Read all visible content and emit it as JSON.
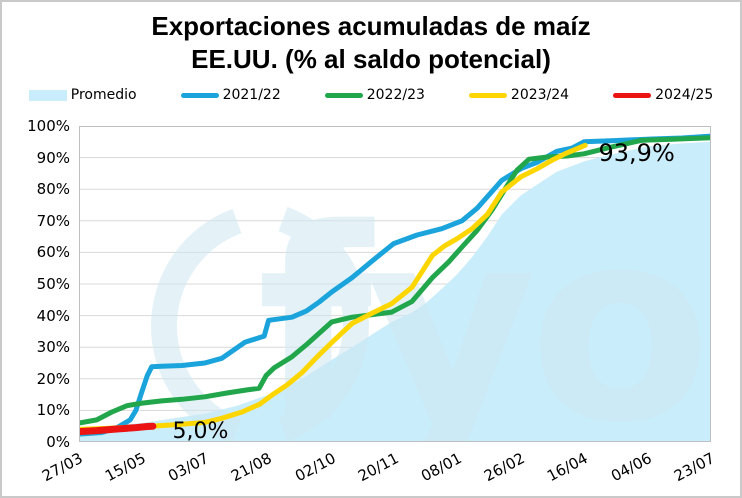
{
  "title": {
    "line1": "Exportaciones acumuladas de maíz",
    "line2": "EE.UU. (% al saldo potencial)"
  },
  "legend": {
    "items": [
      {
        "label": "Promedio",
        "color": "#c9edfa",
        "type": "area"
      },
      {
        "label": "2021/22",
        "color": "#1ba4dc",
        "type": "line"
      },
      {
        "label": "2022/23",
        "color": "#21a64b",
        "type": "line"
      },
      {
        "label": "2023/24",
        "color": "#fdd600",
        "type": "line"
      },
      {
        "label": "2024/25",
        "color": "#ec1313",
        "type": "line"
      }
    ]
  },
  "axes": {
    "y_ticks": [
      "0%",
      "10%",
      "20%",
      "30%",
      "40%",
      "50%",
      "60%",
      "70%",
      "80%",
      "90%",
      "100%"
    ],
    "x_ticks": [
      "27/03",
      "15/05",
      "03/07",
      "21/08",
      "02/10",
      "20/11",
      "08/01",
      "26/02",
      "16/04",
      "04/06",
      "23/07"
    ]
  },
  "annotations": [
    {
      "text": "5,0%",
      "x": 0.148,
      "value": 1.2,
      "size": 22
    },
    {
      "text": "93,9%",
      "x": 0.822,
      "value": 89.0,
      "size": 24
    }
  ],
  "watermark": {
    "text": "fyo",
    "color": "#cfe8f3"
  },
  "chart_data": {
    "type": "line",
    "title": "Exportaciones acumuladas de maíz EE.UU. (% al saldo potencial)",
    "x_axis": {
      "ticks": [
        "27/03",
        "15/05",
        "03/07",
        "21/08",
        "02/10",
        "20/11",
        "08/01",
        "26/02",
        "16/04",
        "04/06",
        "23/07"
      ]
    },
    "y_axis": {
      "min": 0,
      "max": 100,
      "unit": "%",
      "grid": true,
      "grid_color": "#d9d9d9",
      "border_color": "#bfbfbf"
    },
    "legend_position": "top",
    "series": [
      {
        "name": "Promedio",
        "kind": "area",
        "color": "#c9edfa",
        "points": [
          [
            0,
            4.5
          ],
          [
            0.05,
            5.2
          ],
          [
            0.1,
            6
          ],
          [
            0.15,
            7.5
          ],
          [
            0.2,
            9
          ],
          [
            0.25,
            11.5
          ],
          [
            0.3,
            15
          ],
          [
            0.353,
            20
          ],
          [
            0.4,
            26
          ],
          [
            0.448,
            32
          ],
          [
            0.495,
            38
          ],
          [
            0.527,
            41
          ],
          [
            0.549,
            44
          ],
          [
            0.574,
            48.5
          ],
          [
            0.598,
            53
          ],
          [
            0.622,
            58.5
          ],
          [
            0.646,
            65
          ],
          [
            0.669,
            72
          ],
          [
            0.699,
            78
          ],
          [
            0.725,
            81.5
          ],
          [
            0.756,
            85.5
          ],
          [
            0.799,
            88.8
          ],
          [
            0.843,
            91
          ],
          [
            0.899,
            93.5
          ],
          [
            0.954,
            94.5
          ],
          [
            1,
            95
          ]
        ]
      },
      {
        "name": "2021/22",
        "kind": "line",
        "color": "#1ba4dc",
        "width": 5,
        "points": [
          [
            0,
            2.5
          ],
          [
            0.036,
            3
          ],
          [
            0.06,
            4.5
          ],
          [
            0.081,
            7
          ],
          [
            0.09,
            10
          ],
          [
            0.098,
            15
          ],
          [
            0.108,
            21
          ],
          [
            0.115,
            23.8
          ],
          [
            0.131,
            24
          ],
          [
            0.163,
            24.2
          ],
          [
            0.199,
            25
          ],
          [
            0.226,
            26.5
          ],
          [
            0.263,
            31.6
          ],
          [
            0.293,
            33.5
          ],
          [
            0.3,
            38.5
          ],
          [
            0.337,
            39.5
          ],
          [
            0.36,
            41.5
          ],
          [
            0.38,
            44.3
          ],
          [
            0.4,
            47.5
          ],
          [
            0.432,
            52
          ],
          [
            0.464,
            57.3
          ],
          [
            0.498,
            62.8
          ],
          [
            0.535,
            65.5
          ],
          [
            0.574,
            67.5
          ],
          [
            0.606,
            70
          ],
          [
            0.63,
            74
          ],
          [
            0.669,
            82.8
          ],
          [
            0.699,
            86.5
          ],
          [
            0.725,
            88.5
          ],
          [
            0.756,
            92
          ],
          [
            0.78,
            93
          ],
          [
            0.799,
            95
          ],
          [
            0.851,
            95.4
          ],
          [
            0.907,
            95.9
          ],
          [
            0.954,
            96.2
          ],
          [
            1,
            96.8
          ]
        ]
      },
      {
        "name": "2022/23",
        "kind": "line",
        "color": "#21a64b",
        "width": 5,
        "points": [
          [
            0,
            6
          ],
          [
            0.028,
            7
          ],
          [
            0.052,
            9.5
          ],
          [
            0.076,
            11.5
          ],
          [
            0.1,
            12.3
          ],
          [
            0.131,
            13
          ],
          [
            0.163,
            13.5
          ],
          [
            0.199,
            14.3
          ],
          [
            0.234,
            15.5
          ],
          [
            0.266,
            16.5
          ],
          [
            0.285,
            17
          ],
          [
            0.296,
            21
          ],
          [
            0.309,
            23.5
          ],
          [
            0.337,
            27
          ],
          [
            0.361,
            31
          ],
          [
            0.4,
            38
          ],
          [
            0.432,
            39.5
          ],
          [
            0.464,
            40.3
          ],
          [
            0.495,
            41.1
          ],
          [
            0.527,
            44.5
          ],
          [
            0.559,
            52
          ],
          [
            0.585,
            57
          ],
          [
            0.606,
            61.7
          ],
          [
            0.63,
            67
          ],
          [
            0.654,
            73.5
          ],
          [
            0.677,
            81
          ],
          [
            0.693,
            86
          ],
          [
            0.712,
            89.5
          ],
          [
            0.741,
            90.2
          ],
          [
            0.772,
            90.5
          ],
          [
            0.799,
            91.2
          ],
          [
            0.843,
            93.4
          ],
          [
            0.891,
            95.5
          ],
          [
            0.938,
            95.8
          ],
          [
            1,
            96.3
          ]
        ]
      },
      {
        "name": "2023/24",
        "kind": "line",
        "color": "#fdd600",
        "width": 5,
        "end_label": "93,9%",
        "points": [
          [
            0,
            4
          ],
          [
            0.044,
            4.3
          ],
          [
            0.084,
            4.7
          ],
          [
            0.123,
            5.1
          ],
          [
            0.163,
            5.6
          ],
          [
            0.199,
            6.2
          ],
          [
            0.226,
            7.5
          ],
          [
            0.258,
            9.5
          ],
          [
            0.286,
            12
          ],
          [
            0.305,
            14.8
          ],
          [
            0.329,
            18
          ],
          [
            0.353,
            22
          ],
          [
            0.377,
            27
          ],
          [
            0.4,
            31.5
          ],
          [
            0.432,
            37.5
          ],
          [
            0.464,
            40.8
          ],
          [
            0.495,
            43.8
          ],
          [
            0.527,
            49
          ],
          [
            0.559,
            59
          ],
          [
            0.578,
            62
          ],
          [
            0.598,
            64.3
          ],
          [
            0.622,
            67.5
          ],
          [
            0.646,
            72
          ],
          [
            0.669,
            79.1
          ],
          [
            0.699,
            83.9
          ],
          [
            0.725,
            86.5
          ],
          [
            0.748,
            89.1
          ],
          [
            0.772,
            91.5
          ],
          [
            0.801,
            93.9
          ]
        ]
      },
      {
        "name": "2024/25",
        "kind": "line",
        "color": "#ec1313",
        "width": 7,
        "end_label": "5,0%",
        "points": [
          [
            0,
            3.3
          ],
          [
            0.028,
            3.6
          ],
          [
            0.06,
            4.1
          ],
          [
            0.087,
            4.5
          ],
          [
            0.108,
            4.9
          ],
          [
            0.117,
            5.0
          ]
        ]
      }
    ]
  }
}
